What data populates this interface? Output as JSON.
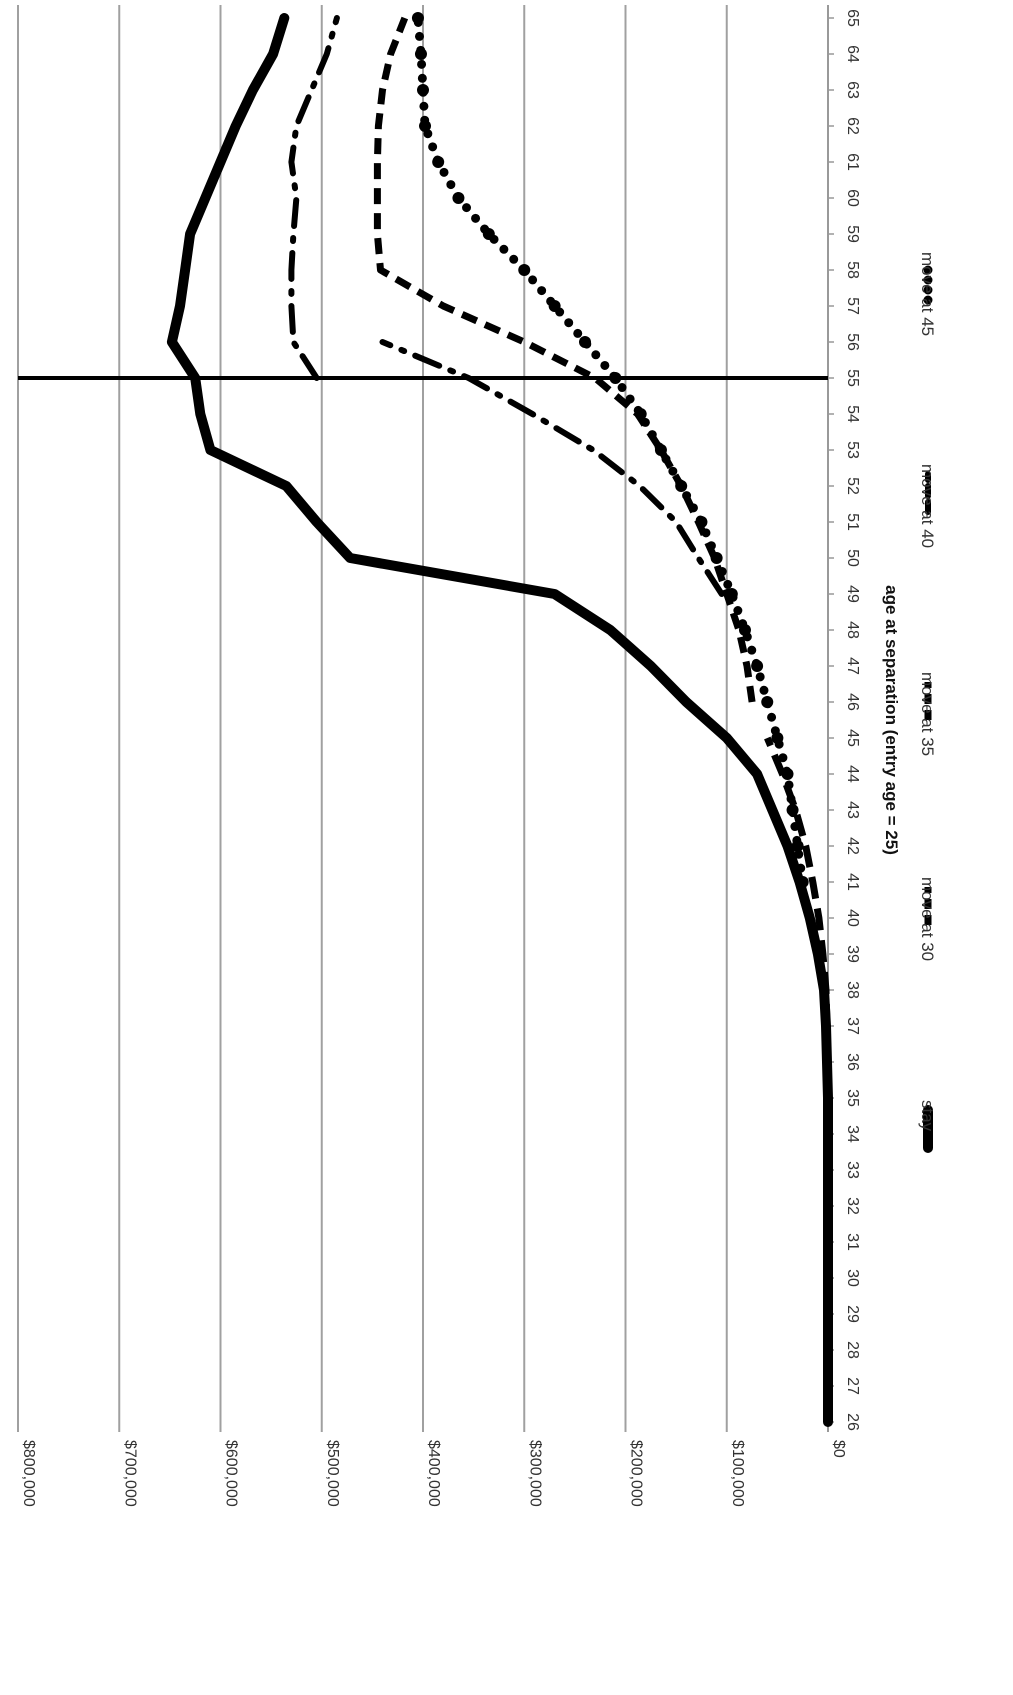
{
  "chart_data": {
    "type": "line",
    "orientation": "rotated-90-clockwise",
    "xlabel": "age at separation (entry age = 25)",
    "ylabel": "",
    "x": [
      26,
      27,
      28,
      29,
      30,
      31,
      32,
      33,
      34,
      35,
      36,
      37,
      38,
      39,
      40,
      41,
      42,
      43,
      44,
      45,
      46,
      47,
      48,
      49,
      50,
      51,
      52,
      53,
      54,
      55,
      56,
      57,
      58,
      59,
      60,
      61,
      62,
      63,
      64,
      65
    ],
    "y_ticks": [
      0,
      100000,
      200000,
      300000,
      400000,
      500000,
      600000,
      700000,
      800000
    ],
    "y_tick_labels": [
      "$0",
      "$100,000",
      "$200,000",
      "$300,000",
      "$400,000",
      "$500,000",
      "$600,000",
      "$700,000",
      "$800,000"
    ],
    "ylim": [
      0,
      800000
    ],
    "grid": true,
    "reference_line": {
      "x": 55
    },
    "legend_position": "bottom",
    "colors": {
      "line": "#000000",
      "grid": "#a0a0a0",
      "axis": "#999999"
    },
    "series": [
      {
        "name": "stay",
        "style": "solid-thick",
        "values": [
          0,
          0,
          0,
          0,
          0,
          0,
          0,
          0,
          0,
          0,
          1000,
          2000,
          4000,
          10000,
          18000,
          28000,
          40000,
          55000,
          70000,
          100000,
          140000,
          175000,
          215000,
          270000,
          472000,
          505000,
          535000,
          610000,
          620000,
          625000,
          648000,
          640000,
          635000,
          630000,
          615000,
          600000,
          585000,
          568000,
          548000,
          537000
        ]
      },
      {
        "name": "move at 30",
        "style": "long-dash",
        "values": [
          null,
          null,
          null,
          null,
          null,
          null,
          null,
          null,
          null,
          null,
          null,
          1000,
          2000,
          5000,
          9000,
          15000,
          22000,
          32000,
          45000,
          60000,
          null,
          null,
          null,
          null,
          null,
          null,
          null,
          null,
          null,
          null,
          null,
          null,
          null,
          null,
          null,
          null,
          null,
          null,
          null,
          null
        ]
      },
      {
        "name": "move at 35",
        "style": "dash",
        "values": [
          null,
          null,
          null,
          null,
          null,
          null,
          null,
          null,
          null,
          null,
          null,
          null,
          null,
          null,
          null,
          null,
          null,
          null,
          null,
          null,
          75000,
          80000,
          88000,
          100000,
          112000,
          128000,
          145000,
          165000,
          188000,
          230000,
          300000,
          380000,
          442000,
          445000,
          445000,
          445000,
          444000,
          440000,
          432000,
          418000
        ]
      },
      {
        "name": "move at 40",
        "style": "dash-dot",
        "values": [
          null,
          null,
          null,
          null,
          null,
          null,
          null,
          null,
          null,
          null,
          null,
          null,
          null,
          null,
          null,
          null,
          null,
          null,
          null,
          null,
          null,
          null,
          null,
          105000,
          128000,
          150000,
          186000,
          232000,
          292000,
          355000,
          440000,
          null,
          null,
          null,
          null,
          null,
          null,
          null,
          null,
          null
        ]
      },
      {
        "name": "move at 40 (after 55)",
        "style": "dash-dot",
        "legend": false,
        "values": [
          null,
          null,
          null,
          null,
          null,
          null,
          null,
          null,
          null,
          null,
          null,
          null,
          null,
          null,
          null,
          null,
          null,
          null,
          null,
          null,
          null,
          null,
          null,
          null,
          null,
          null,
          null,
          null,
          null,
          505000,
          528000,
          530000,
          530000,
          528000,
          525000,
          530000,
          525000,
          510000,
          495000,
          485000
        ]
      },
      {
        "name": "move at 45",
        "style": "dotted",
        "values": [
          null,
          null,
          null,
          null,
          null,
          null,
          null,
          null,
          null,
          null,
          null,
          null,
          null,
          null,
          null,
          null,
          null,
          null,
          null,
          null,
          null,
          null,
          null,
          null,
          null,
          null,
          null,
          null,
          null,
          null,
          null,
          null,
          null,
          null,
          null,
          null,
          null,
          null,
          null,
          null
        ]
      },
      {
        "name": "move at 45 (curve)",
        "style": "dotted",
        "legend": false,
        "values": [
          null,
          null,
          null,
          null,
          null,
          null,
          null,
          null,
          null,
          null,
          null,
          null,
          null,
          null,
          null,
          25000,
          30000,
          35000,
          40000,
          50000,
          60000,
          70000,
          82000,
          95000,
          110000,
          125000,
          145000,
          165000,
          185000,
          210000,
          240000,
          270000,
          300000,
          335000,
          365000,
          385000,
          398000,
          400000,
          402000,
          405000
        ]
      }
    ]
  },
  "legend": {
    "items": [
      {
        "label": "stay"
      },
      {
        "label": "move at 30"
      },
      {
        "label": "move at 35"
      },
      {
        "label": "move at 40"
      },
      {
        "label": "move at 45"
      }
    ]
  }
}
